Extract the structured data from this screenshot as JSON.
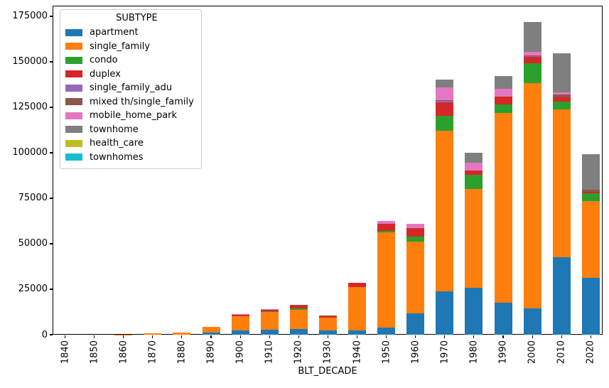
{
  "figure": {
    "xlabel": "BLT_DECADE"
  },
  "legend": {
    "title": "SUBTYPE"
  },
  "axes": {
    "yticks": [
      0,
      25000,
      50000,
      75000,
      100000,
      125000,
      150000,
      175000
    ],
    "ylim": [
      0,
      180859
    ]
  },
  "chart_data": {
    "type": "bar",
    "stacked": true,
    "title": "",
    "xlabel": "BLT_DECADE",
    "ylabel": "",
    "grid": false,
    "legend_position": "upper left",
    "legend_title": "SUBTYPE",
    "ylim": [
      0,
      180859
    ],
    "yticks": [
      0,
      25000,
      50000,
      75000,
      100000,
      125000,
      150000,
      175000
    ],
    "categories": [
      "1840",
      "1850",
      "1860",
      "1870",
      "1880",
      "1890",
      "1900",
      "1910",
      "1920",
      "1930",
      "1940",
      "1950",
      "1960",
      "1970",
      "1980",
      "1990",
      "2000",
      "2010",
      "2020"
    ],
    "series": [
      {
        "name": "apartment",
        "color": "#1f77b4",
        "values": [
          0,
          0,
          0,
          0,
          0,
          1000,
          2500,
          2800,
          3300,
          2400,
          2500,
          4000,
          11800,
          23800,
          25700,
          17600,
          14600,
          42500,
          31300
        ]
      },
      {
        "name": "single_family",
        "color": "#ff7f0e",
        "values": [
          0,
          0,
          100,
          600,
          1300,
          3200,
          7500,
          9800,
          10500,
          6800,
          23500,
          52200,
          39300,
          88300,
          54300,
          104100,
          123600,
          81500,
          42000
        ]
      },
      {
        "name": "condo",
        "color": "#2ca02c",
        "values": [
          0,
          0,
          0,
          0,
          0,
          200,
          300,
          300,
          700,
          200,
          300,
          700,
          2700,
          8400,
          7800,
          4800,
          11100,
          4300,
          4300
        ]
      },
      {
        "name": "duplex",
        "color": "#d62728",
        "values": [
          0,
          0,
          0,
          100,
          0,
          100,
          500,
          600,
          1600,
          800,
          2300,
          3900,
          4700,
          7400,
          2300,
          4300,
          3300,
          2300,
          800
        ]
      },
      {
        "name": "single_family_adu",
        "color": "#9467bd",
        "values": [
          0,
          0,
          0,
          0,
          0,
          0,
          0,
          0,
          0,
          0,
          0,
          0,
          0,
          700,
          0,
          0,
          600,
          0,
          0
        ]
      },
      {
        "name": "mixed th/single_family",
        "color": "#8c564b",
        "values": [
          0,
          0,
          0,
          0,
          0,
          0,
          200,
          200,
          300,
          200,
          0,
          0,
          0,
          500,
          0,
          0,
          500,
          1600,
          1200
        ]
      },
      {
        "name": "mobile_home_park",
        "color": "#e377c2",
        "values": [
          0,
          0,
          0,
          0,
          0,
          0,
          500,
          200,
          0,
          0,
          0,
          1600,
          2300,
          7000,
          4300,
          4300,
          1600,
          1200,
          0
        ]
      },
      {
        "name": "townhome",
        "color": "#7f7f7f",
        "values": [
          0,
          0,
          0,
          0,
          0,
          0,
          0,
          0,
          0,
          0,
          0,
          0,
          0,
          4300,
          5500,
          7000,
          16500,
          21400,
          19500
        ]
      },
      {
        "name": "health_care",
        "color": "#bcbd22",
        "values": [
          0,
          0,
          0,
          0,
          0,
          0,
          0,
          0,
          0,
          0,
          0,
          0,
          0,
          0,
          0,
          0,
          0,
          0,
          0
        ]
      },
      {
        "name": "townhomes",
        "color": "#17becf",
        "values": [
          0,
          0,
          0,
          0,
          0,
          0,
          0,
          0,
          0,
          0,
          0,
          0,
          0,
          0,
          0,
          0,
          0,
          0,
          0
        ]
      }
    ]
  }
}
